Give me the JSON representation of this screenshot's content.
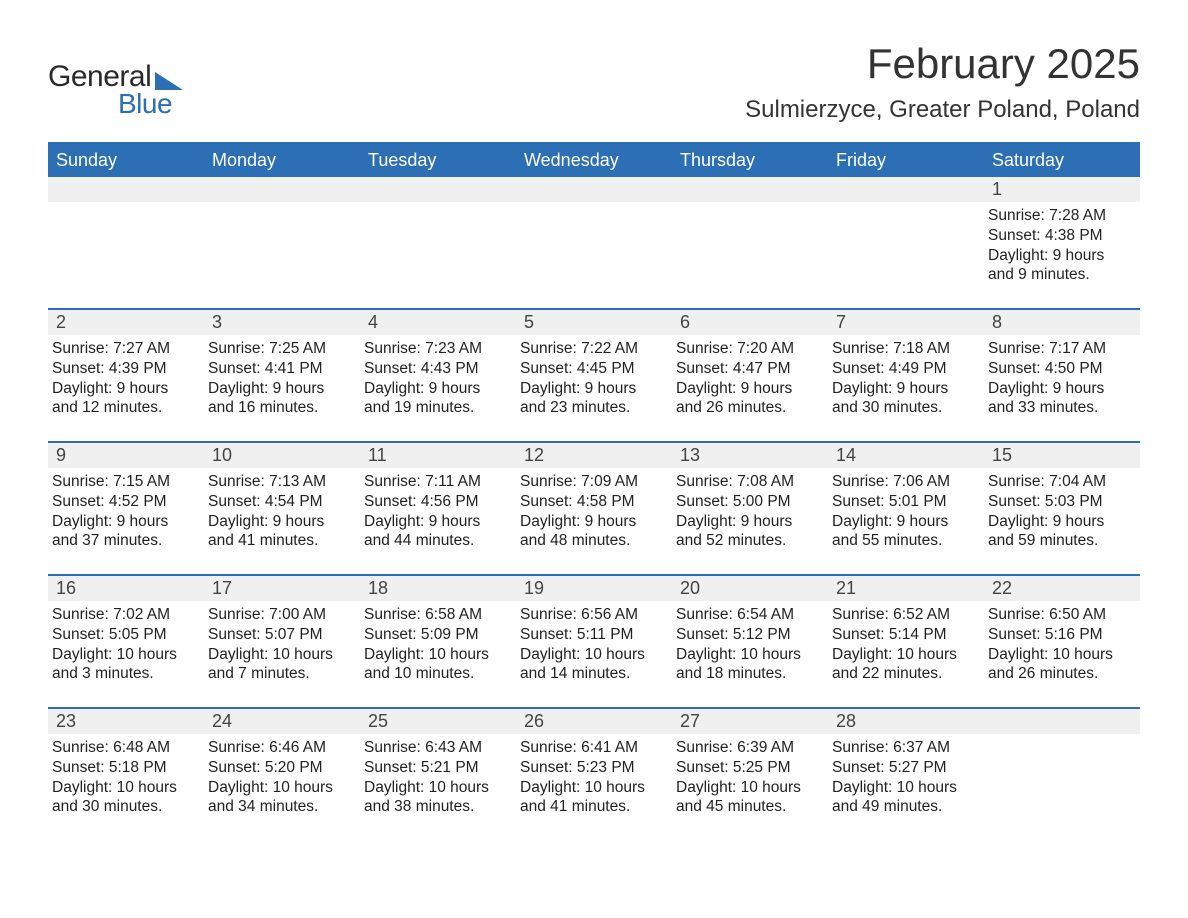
{
  "logo": {
    "word1": "General",
    "word2": "Blue"
  },
  "title": "February 2025",
  "location": "Sulmierzyce, Greater Poland, Poland",
  "colors": {
    "header_bg": "#2d6fb5",
    "header_text": "#ffffff",
    "daynum_bg": "#f0f0f0",
    "row_divider": "#2d6fb5",
    "body_text": "#222222",
    "background": "#ffffff"
  },
  "typography": {
    "title_fontsize": 42,
    "location_fontsize": 24,
    "dow_fontsize": 18,
    "daynum_fontsize": 18,
    "cell_fontsize": 15.5
  },
  "days_of_week": [
    "Sunday",
    "Monday",
    "Tuesday",
    "Wednesday",
    "Thursday",
    "Friday",
    "Saturday"
  ],
  "weeks": [
    {
      "nums": [
        "",
        "",
        "",
        "",
        "",
        "",
        "1"
      ],
      "cells": [
        null,
        null,
        null,
        null,
        null,
        null,
        {
          "sunrise": "Sunrise: 7:28 AM",
          "sunset": "Sunset: 4:38 PM",
          "dayl1": "Daylight: 9 hours",
          "dayl2": "and 9 minutes."
        }
      ]
    },
    {
      "nums": [
        "2",
        "3",
        "4",
        "5",
        "6",
        "7",
        "8"
      ],
      "cells": [
        {
          "sunrise": "Sunrise: 7:27 AM",
          "sunset": "Sunset: 4:39 PM",
          "dayl1": "Daylight: 9 hours",
          "dayl2": "and 12 minutes."
        },
        {
          "sunrise": "Sunrise: 7:25 AM",
          "sunset": "Sunset: 4:41 PM",
          "dayl1": "Daylight: 9 hours",
          "dayl2": "and 16 minutes."
        },
        {
          "sunrise": "Sunrise: 7:23 AM",
          "sunset": "Sunset: 4:43 PM",
          "dayl1": "Daylight: 9 hours",
          "dayl2": "and 19 minutes."
        },
        {
          "sunrise": "Sunrise: 7:22 AM",
          "sunset": "Sunset: 4:45 PM",
          "dayl1": "Daylight: 9 hours",
          "dayl2": "and 23 minutes."
        },
        {
          "sunrise": "Sunrise: 7:20 AM",
          "sunset": "Sunset: 4:47 PM",
          "dayl1": "Daylight: 9 hours",
          "dayl2": "and 26 minutes."
        },
        {
          "sunrise": "Sunrise: 7:18 AM",
          "sunset": "Sunset: 4:49 PM",
          "dayl1": "Daylight: 9 hours",
          "dayl2": "and 30 minutes."
        },
        {
          "sunrise": "Sunrise: 7:17 AM",
          "sunset": "Sunset: 4:50 PM",
          "dayl1": "Daylight: 9 hours",
          "dayl2": "and 33 minutes."
        }
      ]
    },
    {
      "nums": [
        "9",
        "10",
        "11",
        "12",
        "13",
        "14",
        "15"
      ],
      "cells": [
        {
          "sunrise": "Sunrise: 7:15 AM",
          "sunset": "Sunset: 4:52 PM",
          "dayl1": "Daylight: 9 hours",
          "dayl2": "and 37 minutes."
        },
        {
          "sunrise": "Sunrise: 7:13 AM",
          "sunset": "Sunset: 4:54 PM",
          "dayl1": "Daylight: 9 hours",
          "dayl2": "and 41 minutes."
        },
        {
          "sunrise": "Sunrise: 7:11 AM",
          "sunset": "Sunset: 4:56 PM",
          "dayl1": "Daylight: 9 hours",
          "dayl2": "and 44 minutes."
        },
        {
          "sunrise": "Sunrise: 7:09 AM",
          "sunset": "Sunset: 4:58 PM",
          "dayl1": "Daylight: 9 hours",
          "dayl2": "and 48 minutes."
        },
        {
          "sunrise": "Sunrise: 7:08 AM",
          "sunset": "Sunset: 5:00 PM",
          "dayl1": "Daylight: 9 hours",
          "dayl2": "and 52 minutes."
        },
        {
          "sunrise": "Sunrise: 7:06 AM",
          "sunset": "Sunset: 5:01 PM",
          "dayl1": "Daylight: 9 hours",
          "dayl2": "and 55 minutes."
        },
        {
          "sunrise": "Sunrise: 7:04 AM",
          "sunset": "Sunset: 5:03 PM",
          "dayl1": "Daylight: 9 hours",
          "dayl2": "and 59 minutes."
        }
      ]
    },
    {
      "nums": [
        "16",
        "17",
        "18",
        "19",
        "20",
        "21",
        "22"
      ],
      "cells": [
        {
          "sunrise": "Sunrise: 7:02 AM",
          "sunset": "Sunset: 5:05 PM",
          "dayl1": "Daylight: 10 hours",
          "dayl2": "and 3 minutes."
        },
        {
          "sunrise": "Sunrise: 7:00 AM",
          "sunset": "Sunset: 5:07 PM",
          "dayl1": "Daylight: 10 hours",
          "dayl2": "and 7 minutes."
        },
        {
          "sunrise": "Sunrise: 6:58 AM",
          "sunset": "Sunset: 5:09 PM",
          "dayl1": "Daylight: 10 hours",
          "dayl2": "and 10 minutes."
        },
        {
          "sunrise": "Sunrise: 6:56 AM",
          "sunset": "Sunset: 5:11 PM",
          "dayl1": "Daylight: 10 hours",
          "dayl2": "and 14 minutes."
        },
        {
          "sunrise": "Sunrise: 6:54 AM",
          "sunset": "Sunset: 5:12 PM",
          "dayl1": "Daylight: 10 hours",
          "dayl2": "and 18 minutes."
        },
        {
          "sunrise": "Sunrise: 6:52 AM",
          "sunset": "Sunset: 5:14 PM",
          "dayl1": "Daylight: 10 hours",
          "dayl2": "and 22 minutes."
        },
        {
          "sunrise": "Sunrise: 6:50 AM",
          "sunset": "Sunset: 5:16 PM",
          "dayl1": "Daylight: 10 hours",
          "dayl2": "and 26 minutes."
        }
      ]
    },
    {
      "nums": [
        "23",
        "24",
        "25",
        "26",
        "27",
        "28",
        ""
      ],
      "cells": [
        {
          "sunrise": "Sunrise: 6:48 AM",
          "sunset": "Sunset: 5:18 PM",
          "dayl1": "Daylight: 10 hours",
          "dayl2": "and 30 minutes."
        },
        {
          "sunrise": "Sunrise: 6:46 AM",
          "sunset": "Sunset: 5:20 PM",
          "dayl1": "Daylight: 10 hours",
          "dayl2": "and 34 minutes."
        },
        {
          "sunrise": "Sunrise: 6:43 AM",
          "sunset": "Sunset: 5:21 PM",
          "dayl1": "Daylight: 10 hours",
          "dayl2": "and 38 minutes."
        },
        {
          "sunrise": "Sunrise: 6:41 AM",
          "sunset": "Sunset: 5:23 PM",
          "dayl1": "Daylight: 10 hours",
          "dayl2": "and 41 minutes."
        },
        {
          "sunrise": "Sunrise: 6:39 AM",
          "sunset": "Sunset: 5:25 PM",
          "dayl1": "Daylight: 10 hours",
          "dayl2": "and 45 minutes."
        },
        {
          "sunrise": "Sunrise: 6:37 AM",
          "sunset": "Sunset: 5:27 PM",
          "dayl1": "Daylight: 10 hours",
          "dayl2": "and 49 minutes."
        },
        null
      ]
    }
  ]
}
